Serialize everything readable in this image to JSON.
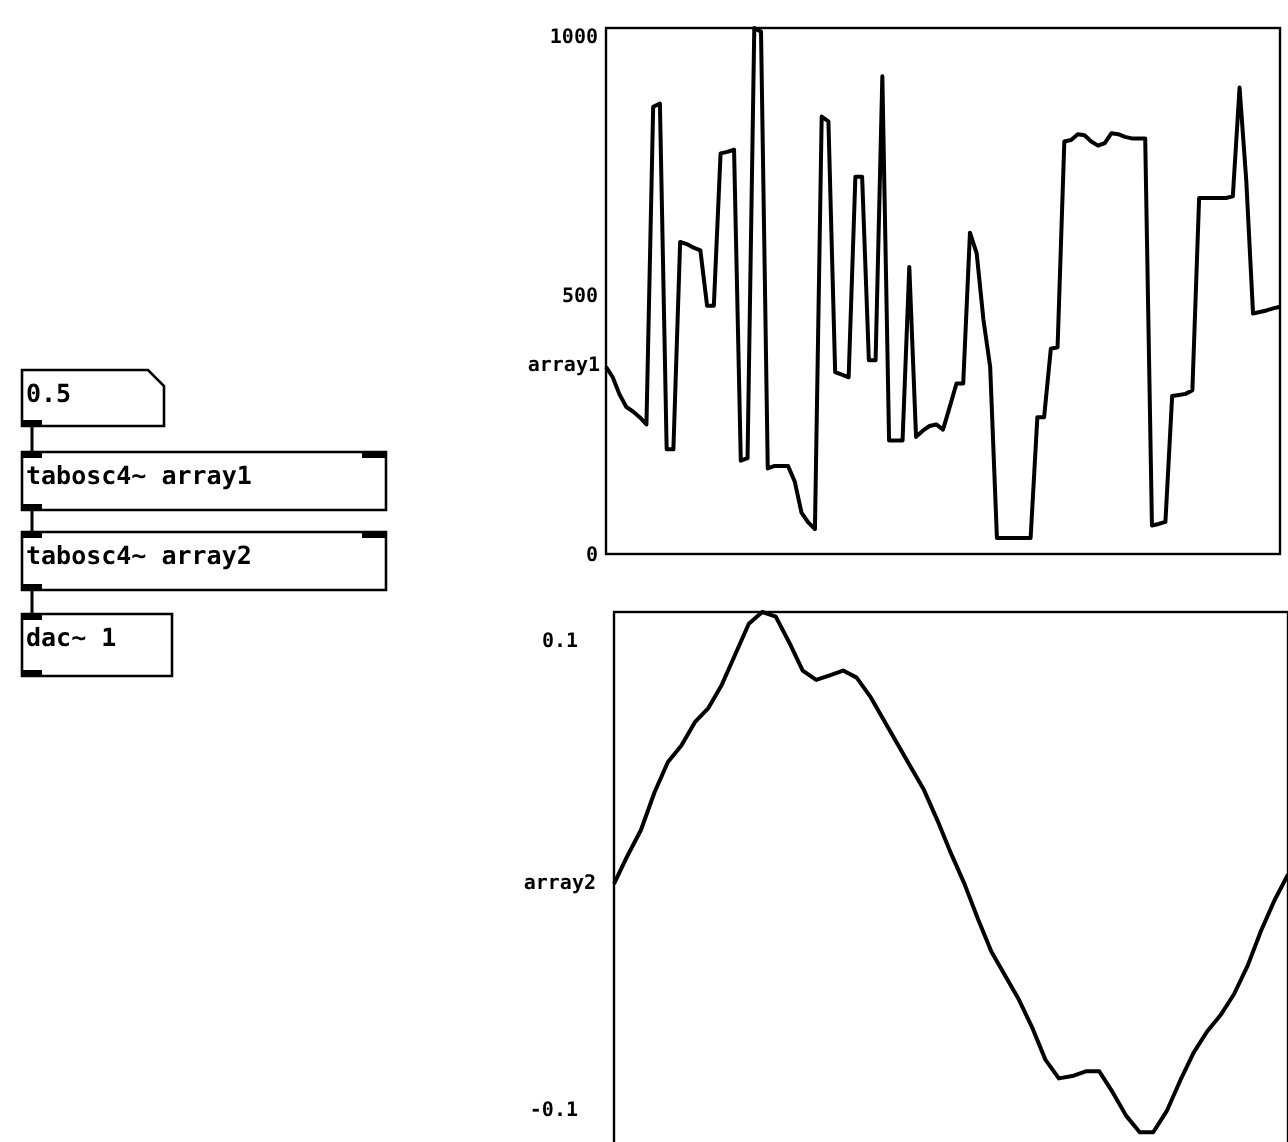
{
  "chart_data": [
    {
      "type": "line",
      "ylabel": "array1",
      "color": "#000000",
      "ylim": [
        0,
        1015
      ],
      "yticks": [
        0,
        500,
        1000
      ],
      "categories": [
        null,
        null,
        null,
        null,
        null,
        null,
        null,
        null,
        null,
        null,
        null,
        null,
        null,
        null,
        null,
        null,
        null,
        null,
        null,
        null,
        null,
        null,
        null,
        null,
        null,
        null,
        null,
        null,
        null,
        null,
        null,
        null,
        null,
        null,
        null,
        null,
        null,
        null,
        null,
        null,
        null,
        null,
        null,
        null,
        null,
        null,
        null,
        null,
        null,
        null,
        null,
        null,
        null,
        null,
        null,
        null,
        null,
        null,
        null,
        null,
        null,
        null,
        null,
        null,
        null,
        null,
        null,
        null,
        null,
        null,
        null,
        null,
        null,
        null,
        null,
        null,
        null,
        null,
        null,
        null,
        null,
        null,
        null,
        null,
        null,
        null,
        null,
        null,
        null,
        null,
        null,
        null,
        null,
        null,
        null,
        null,
        null,
        null,
        null,
        null,
        null
      ],
      "values": [
        361,
        341,
        308,
        284,
        275,
        264,
        250,
        863,
        869,
        202,
        202,
        602,
        598,
        591,
        586,
        479,
        479,
        773,
        776,
        780,
        180,
        185,
        1015,
        1008,
        165,
        170,
        170,
        170,
        140,
        80,
        61,
        48,
        844,
        835,
        351,
        346,
        341,
        728,
        728,
        374,
        374,
        922,
        219,
        219,
        219,
        554,
        226,
        238,
        247,
        250,
        240,
        284,
        329,
        329,
        620,
        580,
        452,
        361,
        31,
        31,
        31,
        31,
        31,
        31,
        264,
        264,
        396,
        399,
        796,
        799,
        810,
        808,
        796,
        788,
        793,
        812,
        810,
        805,
        802,
        802,
        802,
        55,
        58,
        62,
        305,
        307,
        309,
        316,
        687,
        687,
        687,
        687,
        687,
        690,
        900,
        720,
        464,
        467,
        470,
        474,
        477
      ]
    },
    {
      "type": "line",
      "ylabel": "array2",
      "color": "#000000",
      "ylim": [
        -0.115,
        0.112
      ],
      "yticks": [
        -0.1,
        0.1
      ],
      "categories": [
        null,
        null,
        null,
        null,
        null,
        null,
        null,
        null,
        null,
        null,
        null,
        null,
        null,
        null,
        null,
        null,
        null,
        null,
        null,
        null,
        null,
        null,
        null,
        null,
        null,
        null,
        null,
        null,
        null,
        null,
        null,
        null,
        null,
        null,
        null,
        null,
        null,
        null,
        null,
        null,
        null,
        null,
        null,
        null,
        null,
        null,
        null,
        null,
        null,
        null,
        null
      ],
      "values": [
        -0.004,
        0.008,
        0.019,
        0.035,
        0.048,
        0.055,
        0.065,
        0.071,
        0.081,
        0.094,
        0.107,
        0.112,
        0.11,
        0.099,
        0.087,
        0.083,
        0.085,
        0.087,
        0.084,
        0.076,
        0.066,
        0.056,
        0.046,
        0.036,
        0.023,
        0.009,
        -0.004,
        -0.019,
        -0.033,
        -0.043,
        -0.053,
        -0.065,
        -0.079,
        -0.087,
        -0.086,
        -0.084,
        -0.084,
        -0.093,
        -0.103,
        -0.11,
        -0.11,
        -0.101,
        -0.088,
        -0.076,
        -0.067,
        -0.06,
        -0.051,
        -0.039,
        -0.024,
        -0.011,
        0.0
      ]
    },
    {
      "type": "other",
      "annotations": [
        "0.5",
        "tabosc4~ array1",
        "tabosc4~ array2",
        "dac~ 1"
      ]
    }
  ]
}
